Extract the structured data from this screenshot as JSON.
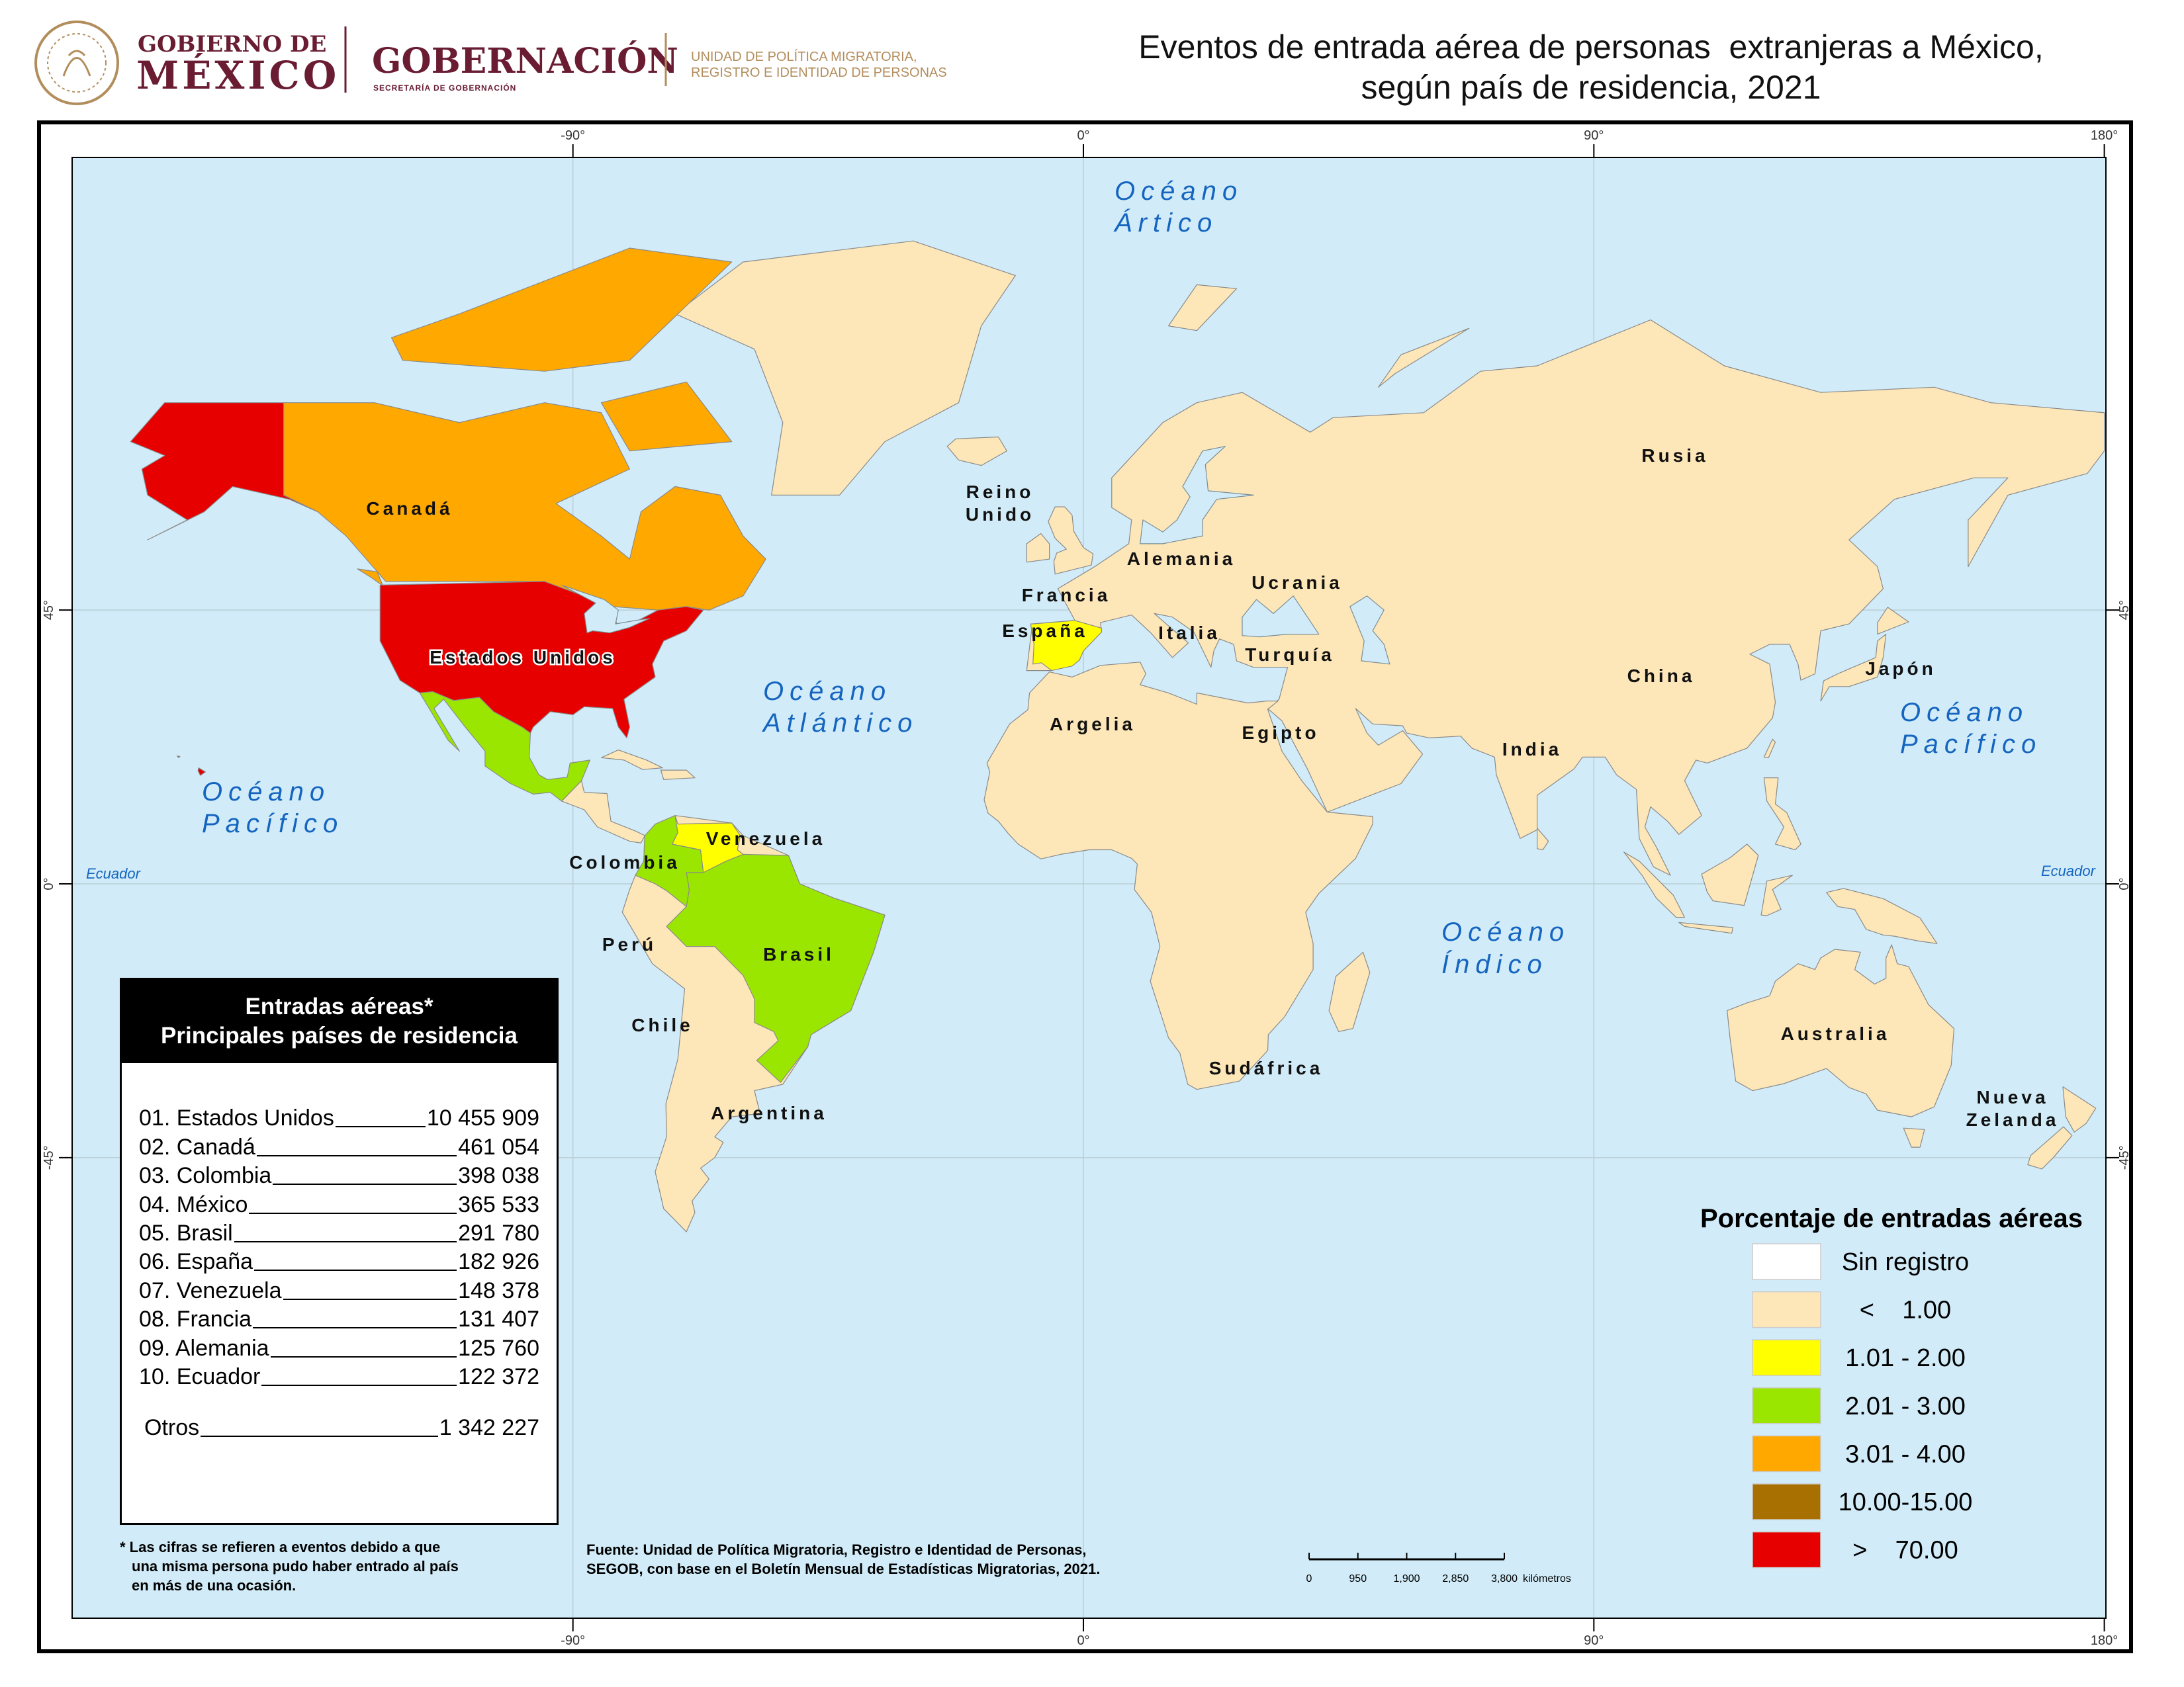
{
  "header": {
    "logo_line1": "GOBIERNO DE",
    "logo_line2": "MÉXICO",
    "agency": "GOBERNACIÓN",
    "agency_sub": "SECRETARÍA DE GOBERNACIÓN",
    "unit_line1": "UNIDAD DE POLÍTICA MIGRATORIA,",
    "unit_line2": "REGISTRO E IDENTIDAD DE PERSONAS"
  },
  "title": {
    "line1": "Eventos de entrada aérea de personas  extranjeras a México,",
    "line2": "según país de residencia, 2021"
  },
  "map": {
    "longitude_ticks": [
      "-90°",
      "0°",
      "90°",
      "180°"
    ],
    "latitude_ticks": [
      "45°",
      "0°",
      "-45°"
    ],
    "equator": "Ecuador",
    "oceans": [
      [
        "Océano",
        "Ártico"
      ],
      [
        "Océano",
        "Atlántico"
      ],
      [
        "Océano",
        "Pacífico"
      ],
      [
        "Océano",
        "Pacífico"
      ],
      [
        "Océano",
        "Índico"
      ]
    ],
    "countries": [
      [
        "Canadá"
      ],
      [
        "Estados Unidos"
      ],
      [
        "Reino",
        "Unido"
      ],
      [
        "Francia"
      ],
      [
        "Alemania"
      ],
      [
        "Ucrania"
      ],
      [
        "España"
      ],
      [
        "Italia"
      ],
      [
        "Turquía"
      ],
      [
        "Rusia"
      ],
      [
        "China"
      ],
      [
        "Japón"
      ],
      [
        "Argelia"
      ],
      [
        "Egipto"
      ],
      [
        "India"
      ],
      [
        "Venezuela"
      ],
      [
        "Colombia"
      ],
      [
        "Perú"
      ],
      [
        "Brasil"
      ],
      [
        "Chile"
      ],
      [
        "Argentina"
      ],
      [
        "Sudáfrica"
      ],
      [
        "Australia"
      ],
      [
        "Nueva",
        "Zelanda"
      ]
    ]
  },
  "table": {
    "title": [
      "Entradas aéreas*",
      "Principales países de residencia"
    ],
    "rows": [
      [
        "01. Estados Unidos",
        "10 455 909"
      ],
      [
        "02. Canadá",
        "461 054"
      ],
      [
        "03. Colombia",
        "398 038"
      ],
      [
        "04. México",
        "365 533"
      ],
      [
        "05. Brasil",
        "291 780"
      ],
      [
        "06. España",
        "182 926"
      ],
      [
        "07. Venezuela",
        "148 378"
      ],
      [
        "08. Francia",
        "131 407"
      ],
      [
        "09. Alemania",
        "125 760"
      ],
      [
        "10. Ecuador",
        "122 372"
      ]
    ],
    "others": [
      "Otros",
      "1 342 227"
    ]
  },
  "footnote": [
    "* Las cifras se refieren a eventos debido a que",
    "una misma persona pudo haber entrado al país",
    "en más de una ocasión."
  ],
  "source": [
    "Fuente: Unidad de Política Migratoria, Registro e Identidad de Personas,",
    "SEGOB, con base en el Boletín Mensual de Estadísticas Migratorias, 2021."
  ],
  "scale_bar": {
    "ticks": [
      "0",
      "950",
      "1,900",
      "2,850",
      "3,800"
    ],
    "unit": "kilómetros"
  },
  "legend": {
    "title": "Porcentaje de entradas aéreas",
    "items": [
      {
        "label": "Sin registro",
        "color": "#ffffff"
      },
      {
        "label": "<    1.00",
        "color": "#fde6b8"
      },
      {
        "label": "1.01 - 2.00",
        "color": "#ffff00"
      },
      {
        "label": "2.01 - 3.00",
        "color": "#9be600"
      },
      {
        "label": "3.01 - 4.00",
        "color": "#ffa800"
      },
      {
        "label": "10.00-15.00",
        "color": "#a87000"
      },
      {
        "label": ">    70.00",
        "color": "#e60000"
      }
    ]
  }
}
